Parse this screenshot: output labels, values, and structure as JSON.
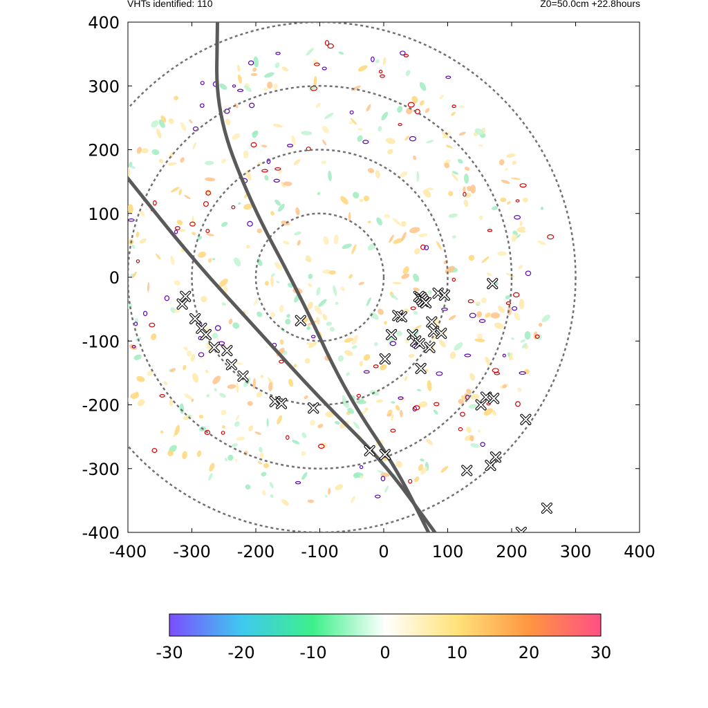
{
  "header": {
    "left_label": "VHTs identified: 110",
    "right_label": "Z0=50.0cm  +22.8hours"
  },
  "colors": {
    "ring": "#707070",
    "track": "#5a5a5a",
    "contour_positive": "#d00000",
    "contour_negative": "#5a00b0",
    "colorbar_stops": [
      "#7b4dff",
      "#3fc8f0",
      "#3df08a",
      "#ffffff",
      "#ffe27a",
      "#ff9640",
      "#ff4f84"
    ]
  },
  "chart_data": {
    "type": "scatter",
    "title": "",
    "xlabel": "",
    "ylabel": "",
    "xlim": [
      -400,
      400
    ],
    "ylim": [
      -400,
      400
    ],
    "x_ticks": [
      "-400",
      "-300",
      "-200",
      "-100",
      "0",
      "100",
      "200",
      "300",
      "400"
    ],
    "y_ticks": [
      "400",
      "300",
      "200",
      "100",
      "0",
      "-100",
      "-200",
      "-300",
      "-400"
    ],
    "grid": false,
    "range_rings": [
      100,
      200,
      300,
      400
    ],
    "range_ring_center": [
      -100,
      0
    ],
    "tracks": [
      {
        "points": [
          [
            -400,
            155
          ],
          [
            -300,
            30
          ],
          [
            -200,
            -80
          ],
          [
            -100,
            -190
          ],
          [
            0,
            -290
          ],
          [
            80,
            -400
          ]
        ]
      },
      {
        "points": [
          [
            -260,
            400
          ],
          [
            -262,
            260
          ],
          [
            -210,
            120
          ],
          [
            -130,
            -30
          ],
          [
            -60,
            -180
          ],
          [
            20,
            -300
          ],
          [
            70,
            -400
          ]
        ]
      }
    ],
    "series": [
      {
        "marker": "x",
        "points": [
          [
            -310,
            -30
          ],
          [
            -315,
            -42
          ],
          [
            -295,
            -65
          ],
          [
            -285,
            -80
          ],
          [
            -278,
            -90
          ],
          [
            -265,
            -110
          ],
          [
            -245,
            -115
          ],
          [
            -238,
            -137
          ],
          [
            -220,
            -155
          ],
          [
            -170,
            -195
          ],
          [
            -160,
            -198
          ],
          [
            -110,
            -205
          ],
          [
            -130,
            -68
          ],
          [
            -22,
            -272
          ],
          [
            2,
            -278
          ],
          [
            12,
            -90
          ],
          [
            2,
            -128
          ],
          [
            22,
            -60
          ],
          [
            28,
            -62
          ],
          [
            45,
            -90
          ],
          [
            50,
            -100
          ],
          [
            56,
            -104
          ],
          [
            75,
            -70
          ],
          [
            78,
            -85
          ],
          [
            72,
            -110
          ],
          [
            85,
            -25
          ],
          [
            95,
            -28
          ],
          [
            90,
            -88
          ],
          [
            55,
            -30
          ],
          [
            58,
            -32
          ],
          [
            60,
            -35
          ],
          [
            62,
            -38
          ],
          [
            66,
            -40
          ],
          [
            58,
            -143
          ],
          [
            170,
            -10
          ],
          [
            130,
            -303
          ],
          [
            152,
            -200
          ],
          [
            160,
            -188
          ],
          [
            172,
            -190
          ],
          [
            167,
            -295
          ],
          [
            175,
            -282
          ],
          [
            222,
            -223
          ],
          [
            215,
            -400
          ],
          [
            255,
            -362
          ]
        ]
      }
    ],
    "colorbar": {
      "min": -30,
      "max": 30,
      "ticks": [
        "-30",
        "-20",
        "-10",
        "0",
        "10",
        "20",
        "30"
      ]
    }
  }
}
